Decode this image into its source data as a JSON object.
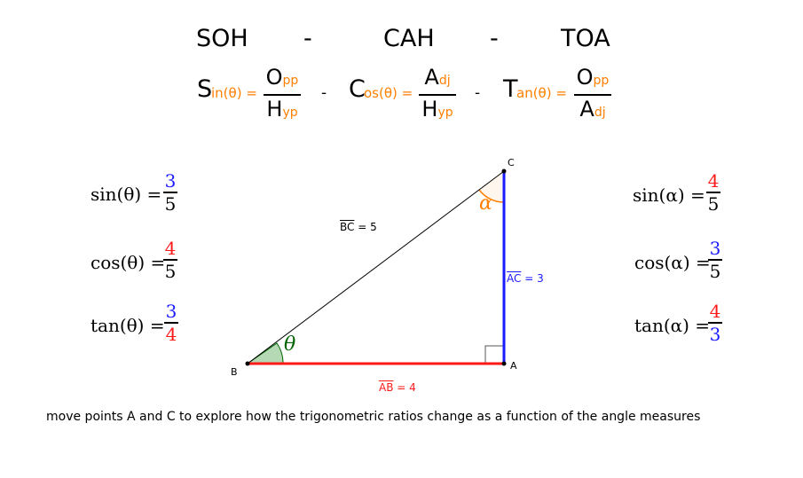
{
  "mnemonic": {
    "soh": "SOH",
    "dash1": "-",
    "cah": "CAH",
    "dash2": "-",
    "toa": "TOA"
  },
  "formulas": {
    "sin_letter": "S",
    "sin_rest": "in(θ) =",
    "sin_num_letter": "O",
    "sin_num_rest": "pp",
    "sin_den_letter": "H",
    "sin_den_rest": "yp",
    "dash1": "-",
    "cos_letter": "C",
    "cos_rest": "os(θ) =",
    "cos_num_letter": "A",
    "cos_num_rest": "dj",
    "cos_den_letter": "H",
    "cos_den_rest": "yp",
    "dash2": "-",
    "tan_letter": "T",
    "tan_rest": "an(θ) =",
    "tan_num_letter": "O",
    "tan_num_rest": "pp",
    "tan_den_letter": "A",
    "tan_den_rest": "dj"
  },
  "theta_ratios": {
    "sin_label": "sin(θ) =",
    "sin_num": "3",
    "sin_den": "5",
    "cos_label": "cos(θ) =",
    "cos_num": "4",
    "cos_den": "5",
    "tan_label": "tan(θ) =",
    "tan_num": "3",
    "tan_den": "4"
  },
  "alpha_ratios": {
    "sin_label": "sin(α) =",
    "sin_num": "4",
    "sin_den": "5",
    "cos_label": "cos(α) =",
    "cos_num": "3",
    "cos_den": "5",
    "tan_label": "tan(α) =",
    "tan_num": "4",
    "tan_den": "3"
  },
  "triangle": {
    "point_a": "A",
    "point_b": "B",
    "point_c": "C",
    "theta_symbol": "θ",
    "alpha_symbol": "α",
    "bc_name": "BC",
    "bc_value": " = 5",
    "ac_name": "AC",
    "ac_value": " = 3",
    "ab_name": "AB",
    "ab_value": " = 4"
  },
  "colors": {
    "orange": "#ff7f00",
    "blue": "#1a1aff",
    "red": "#ff1a1a",
    "green": "#006400"
  },
  "caption": "move points A and C to explore how the trigonometric ratios change as a function of the angle measures"
}
